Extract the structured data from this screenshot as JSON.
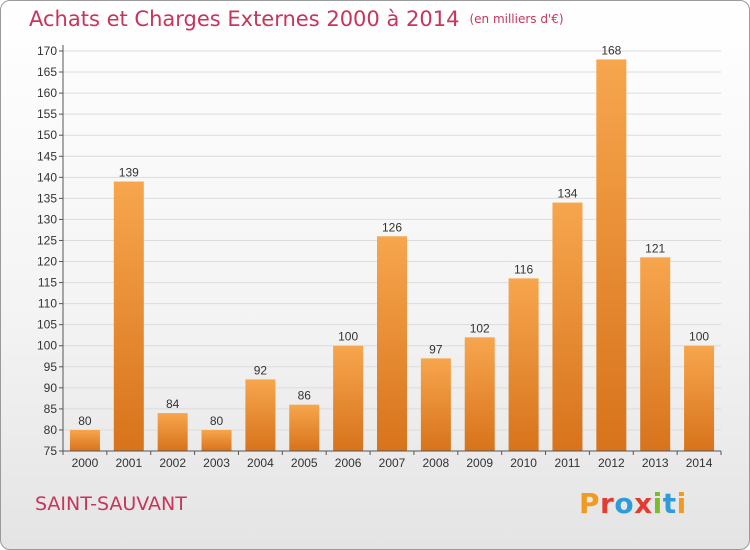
{
  "header": {
    "title": "Achats et Charges Externes 2000 à 2014",
    "unit": "(en milliers d'€)"
  },
  "footer": {
    "place": "SAINT-SAUVANT",
    "brand": "Proxiti",
    "brand_colors": [
      "#f29a1f",
      "#e23b32",
      "#2f9bd7",
      "#e23b32",
      "#7dbb2a",
      "#2f9bd7",
      "#f29a1f"
    ]
  },
  "chart_data": {
    "type": "bar",
    "title": "Achats et Charges Externes 2000 à 2014",
    "subtitle": "(en milliers d'€)",
    "categories": [
      "2000",
      "2001",
      "2002",
      "2003",
      "2004",
      "2005",
      "2006",
      "2007",
      "2008",
      "2009",
      "2010",
      "2011",
      "2012",
      "2013",
      "2014"
    ],
    "values": [
      80,
      139,
      84,
      80,
      92,
      86,
      100,
      126,
      97,
      102,
      116,
      134,
      168,
      121,
      100
    ],
    "ylim": [
      75,
      170
    ],
    "ytick_step": 5,
    "grid": true,
    "bar_color_light": "#f7a64e",
    "bar_color_dark": "#d7731b",
    "label_color": "#333333"
  }
}
